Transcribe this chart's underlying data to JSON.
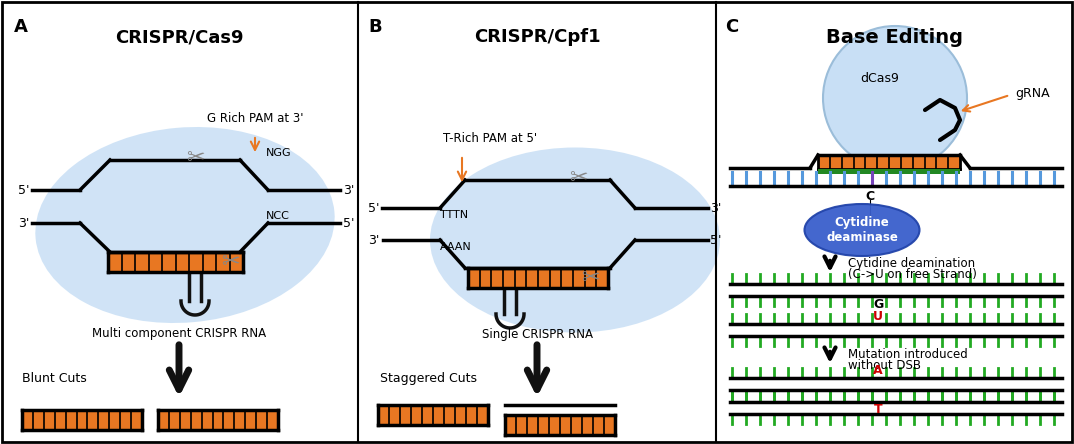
{
  "bg_color": "#ffffff",
  "panel_A_title": "CRISPR/Cas9",
  "panel_B_title": "CRISPR/Cpf1",
  "panel_C_title": "Base Editing",
  "label_A": "A",
  "label_B": "B",
  "label_C": "C",
  "orange_color": "#E87722",
  "green_color": "#22aa22",
  "blue_light": "#c8dff5",
  "blue_dark": "#3a5fcc",
  "blue_tick": "#5599dd",
  "purple_tick": "#7744bb",
  "arrow_orange": "#E87722",
  "black": "#000000",
  "gray": "#888888",
  "red": "#cc0000",
  "blunt_label": "Blunt Cuts",
  "staggered_label": "Staggered Cuts",
  "multi_label": "Multi component CRISPR RNA",
  "single_label": "Single CRISPR RNA",
  "cyto_label1": "Cytidine deamination",
  "cyto_label2": "(C->U on free Strand)",
  "mut_label1": "Mutation introduced",
  "mut_label2": "without DSB",
  "dcas9_label": "dCas9",
  "grna_label": "gRNA",
  "cyto_deam_label": "Cytidine\ndeaminase",
  "pam_a_label": "G Rich PAM at 3'",
  "pam_b_label": "T-Rich PAM at 5'",
  "ngg_label": "NGG",
  "ncc_label": "NCC",
  "tttn_label": "TTTN",
  "aaan_label": "AAAN",
  "g_label": "G",
  "u_label": "U",
  "a_label": "A",
  "t_label": "T",
  "c_label": "C",
  "five_prime": "5'",
  "three_prime": "3'"
}
